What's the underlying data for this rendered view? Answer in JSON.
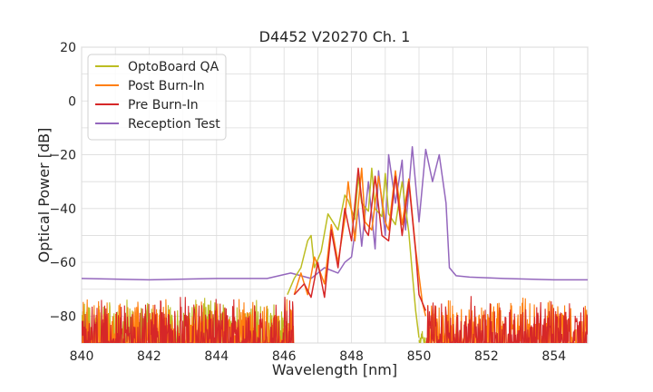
{
  "chart_data": {
    "type": "line",
    "title": "D4452 V20270 Ch. 1",
    "xlabel": "Wavelength [nm]",
    "ylabel": "Optical Power [dB]",
    "xlim": [
      840,
      855
    ],
    "ylim": [
      -90,
      20
    ],
    "xticks": [
      840,
      842,
      844,
      846,
      848,
      850,
      852,
      854
    ],
    "yticks": [
      20,
      0,
      -20,
      -40,
      -60,
      -80
    ],
    "ytick_labels": [
      "20",
      "0",
      "−20",
      "−40",
      "−60",
      "−80"
    ],
    "grid": true,
    "legend_position": "top-left",
    "series": [
      {
        "name": "OptoBoard QA",
        "color": "#bcbd22",
        "noise_floor": {
          "x_range": [
            840,
            846.1
          ],
          "level_range": [
            -90,
            -72
          ]
        },
        "x": [
          846.1,
          846.3,
          846.5,
          846.7,
          846.8,
          846.9,
          847.1,
          847.3,
          847.4,
          847.6,
          847.8,
          847.9,
          848.1,
          848.2,
          848.3,
          848.5,
          848.6,
          848.7,
          848.9,
          849.0,
          849.1,
          849.3,
          849.5,
          849.7,
          849.8,
          849.9,
          850.0
        ],
        "y": [
          -72,
          -66,
          -62,
          -52,
          -50,
          -62,
          -56,
          -42,
          -44,
          -48,
          -35,
          -37,
          -44,
          -28,
          -38,
          -41,
          -25,
          -40,
          -43,
          -27,
          -42,
          -46,
          -30,
          -49,
          -64,
          -78,
          -88
        ],
        "tail_noise": {
          "x_range": [
            850.0,
            850.2
          ],
          "level_range": [
            -90,
            -84
          ]
        }
      },
      {
        "name": "Post Burn-In",
        "color": "#ff7f0e",
        "noise_floor": {
          "x_range": [
            840,
            855
          ],
          "level_range": [
            -90,
            -72
          ],
          "gap": [
            846.3,
            850.2
          ]
        },
        "x": [
          846.3,
          846.5,
          846.7,
          846.9,
          847.2,
          847.4,
          847.6,
          847.8,
          847.9,
          848.1,
          848.3,
          848.4,
          848.6,
          848.8,
          849.0,
          849.1,
          849.3,
          849.5,
          849.7,
          849.9,
          850.1,
          850.2
        ],
        "y": [
          -72,
          -64,
          -72,
          -58,
          -68,
          -46,
          -60,
          -44,
          -30,
          -52,
          -25,
          -45,
          -48,
          -28,
          -45,
          -48,
          -26,
          -46,
          -29,
          -55,
          -75,
          -80
        ]
      },
      {
        "name": "Pre Burn-In",
        "color": "#d62728",
        "noise_floor": {
          "x_range": [
            840,
            855
          ],
          "level_range": [
            -90,
            -72
          ],
          "gap": [
            846.3,
            850.2
          ]
        },
        "x": [
          846.3,
          846.6,
          846.8,
          847.0,
          847.2,
          847.4,
          847.6,
          847.8,
          848.0,
          848.2,
          848.4,
          848.5,
          848.7,
          848.9,
          849.1,
          849.3,
          849.5,
          849.7,
          849.9,
          850.0,
          850.2
        ],
        "y": [
          -72,
          -68,
          -73,
          -60,
          -73,
          -48,
          -62,
          -40,
          -52,
          -25,
          -48,
          -50,
          -28,
          -50,
          -52,
          -28,
          -50,
          -30,
          -56,
          -72,
          -78
        ]
      },
      {
        "name": "Reception Test",
        "color": "#9467bd",
        "x": [
          840.0,
          842.0,
          844.0,
          845.5,
          846.2,
          846.8,
          847.2,
          847.6,
          847.8,
          848.0,
          848.2,
          848.3,
          848.5,
          848.7,
          848.8,
          849.0,
          849.1,
          849.3,
          849.5,
          849.6,
          849.8,
          850.0,
          850.2,
          850.4,
          850.6,
          850.8,
          850.9,
          851.1,
          851.5,
          852.5,
          854.0,
          855.0
        ],
        "y": [
          -66,
          -66.5,
          -66,
          -66,
          -64,
          -66,
          -62,
          -64,
          -60,
          -58,
          -40,
          -54,
          -30,
          -55,
          -26,
          -50,
          -20,
          -38,
          -22,
          -48,
          -17,
          -45,
          -18,
          -30,
          -20,
          -38,
          -62,
          -65,
          -65.5,
          -66,
          -66.5,
          -66.5
        ]
      }
    ]
  }
}
